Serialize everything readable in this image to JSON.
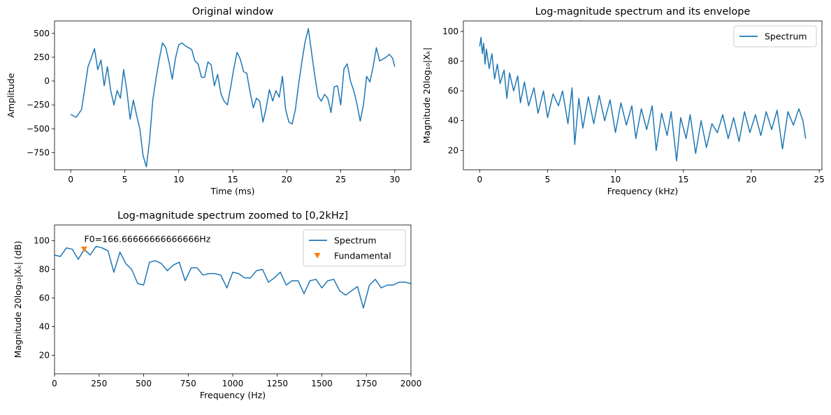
{
  "chart_data": [
    {
      "id": "window",
      "type": "line",
      "title": "Original window",
      "xlabel": "Time (ms)",
      "ylabel": "Amplitude",
      "xlim": [
        -1.5,
        31.5
      ],
      "ylim": [
        -930,
        630
      ],
      "xticks": [
        0,
        5,
        10,
        15,
        20,
        25,
        30
      ],
      "xtick_labels": [
        "0",
        "5",
        "10",
        "15",
        "20",
        "25",
        "30"
      ],
      "yticks": [
        -750,
        -500,
        -250,
        0,
        250,
        500
      ],
      "ytick_labels": [
        "−750",
        "−500",
        "−250",
        "0",
        "250",
        "500"
      ],
      "series": [
        {
          "name": "window",
          "color": "#1f77b4",
          "x": [
            0,
            0.5,
            1,
            1.3,
            1.6,
            1.9,
            2.2,
            2.5,
            2.8,
            3.1,
            3.4,
            3.7,
            4.0,
            4.3,
            4.6,
            4.9,
            5.2,
            5.5,
            5.8,
            6.1,
            6.4,
            6.7,
            7.0,
            7.3,
            7.6,
            7.9,
            8.2,
            8.5,
            8.8,
            9.1,
            9.4,
            9.7,
            10.0,
            10.3,
            10.6,
            10.9,
            11.2,
            11.5,
            11.8,
            12.1,
            12.4,
            12.7,
            13.0,
            13.3,
            13.6,
            13.9,
            14.2,
            14.5,
            14.8,
            15.1,
            15.4,
            15.7,
            16.0,
            16.3,
            16.6,
            16.9,
            17.2,
            17.5,
            17.8,
            18.1,
            18.4,
            18.7,
            19.0,
            19.3,
            19.6,
            19.9,
            20.2,
            20.5,
            20.8,
            21.1,
            21.4,
            21.7,
            22.0,
            22.3,
            22.6,
            22.9,
            23.2,
            23.5,
            23.8,
            24.1,
            24.4,
            24.7,
            25.0,
            25.3,
            25.6,
            25.9,
            26.2,
            26.5,
            26.8,
            27.1,
            27.4,
            27.7,
            28.0,
            28.3,
            28.6,
            28.9,
            29.2,
            29.5,
            29.8,
            30.0
          ],
          "y": [
            -350,
            -380,
            -300,
            -80,
            150,
            240,
            340,
            120,
            220,
            -50,
            150,
            -100,
            -250,
            -100,
            -180,
            120,
            -100,
            -400,
            -200,
            -360,
            -500,
            -780,
            -900,
            -620,
            -200,
            30,
            230,
            400,
            350,
            200,
            20,
            240,
            380,
            400,
            370,
            350,
            330,
            210,
            180,
            40,
            40,
            200,
            170,
            -50,
            70,
            -130,
            -210,
            -250,
            -70,
            130,
            300,
            230,
            100,
            80,
            -110,
            -280,
            -180,
            -210,
            -430,
            -280,
            -90,
            -210,
            -100,
            -170,
            50,
            -300,
            -430,
            -450,
            -300,
            -30,
            200,
            410,
            550,
            300,
            50,
            -160,
            -210,
            -140,
            -180,
            -330,
            -60,
            -50,
            -250,
            130,
            180,
            0,
            -100,
            -240,
            -420,
            -250,
            50,
            -10,
            150,
            350,
            210,
            230,
            250,
            280,
            240,
            150
          ]
        }
      ]
    },
    {
      "id": "spectrum",
      "type": "line",
      "title": "Log-magnitude spectrum and its envelope",
      "xlabel": "Frequency (kHz)",
      "ylabel": "Magnitude 20log₁₀|Xₖ|",
      "xlim": [
        -1.2,
        25.2
      ],
      "ylim": [
        7,
        107
      ],
      "xticks": [
        0,
        5,
        10,
        15,
        20,
        25
      ],
      "xtick_labels": [
        "0",
        "5",
        "10",
        "15",
        "20",
        "25"
      ],
      "yticks": [
        20,
        40,
        60,
        80,
        100
      ],
      "ytick_labels": [
        "20",
        "40",
        "60",
        "80",
        "100"
      ],
      "legend": {
        "position": "top-right",
        "entries": [
          "Spectrum"
        ]
      },
      "series": [
        {
          "name": "Spectrum",
          "color": "#1f77b4",
          "x": [
            0,
            0.1,
            0.2,
            0.3,
            0.4,
            0.5,
            0.7,
            0.9,
            1.1,
            1.3,
            1.5,
            1.8,
            2.0,
            2.2,
            2.5,
            2.8,
            3.0,
            3.3,
            3.6,
            4.0,
            4.3,
            4.7,
            5.0,
            5.4,
            5.8,
            6.1,
            6.5,
            6.8,
            7.0,
            7.3,
            7.6,
            8.0,
            8.4,
            8.8,
            9.2,
            9.6,
            10.0,
            10.4,
            10.8,
            11.2,
            11.5,
            11.9,
            12.3,
            12.7,
            13.0,
            13.4,
            13.8,
            14.1,
            14.5,
            14.8,
            15.2,
            15.5,
            15.9,
            16.3,
            16.7,
            17.1,
            17.5,
            17.9,
            18.3,
            18.7,
            19.1,
            19.5,
            19.9,
            20.3,
            20.7,
            21.1,
            21.5,
            21.9,
            22.3,
            22.7,
            23.1,
            23.5,
            23.8,
            24.0
          ],
          "y": [
            90,
            96,
            85,
            92,
            78,
            88,
            75,
            85,
            68,
            78,
            65,
            74,
            55,
            72,
            60,
            70,
            52,
            66,
            50,
            62,
            45,
            60,
            42,
            58,
            50,
            60,
            38,
            62,
            24,
            55,
            35,
            56,
            38,
            57,
            40,
            54,
            32,
            52,
            37,
            50,
            28,
            48,
            34,
            50,
            20,
            45,
            30,
            46,
            13,
            42,
            28,
            44,
            18,
            40,
            22,
            38,
            32,
            44,
            28,
            42,
            26,
            46,
            32,
            44,
            30,
            46,
            34,
            47,
            21,
            46,
            37,
            48,
            40,
            28
          ]
        }
      ]
    },
    {
      "id": "zoom",
      "type": "line",
      "title": "Log-magnitude spectrum zoomed to [0,2kHz]",
      "xlabel": "Frequency (Hz)",
      "ylabel": "Magnitude 20log₁₀|Xₖ| (dB)",
      "xlim": [
        0,
        2000
      ],
      "ylim": [
        7,
        111
      ],
      "xticks": [
        0,
        250,
        500,
        750,
        1000,
        1250,
        1500,
        1750,
        2000
      ],
      "xtick_labels": [
        "0",
        "250",
        "500",
        "750",
        "1000",
        "1250",
        "1500",
        "1750",
        "2000"
      ],
      "yticks": [
        20,
        40,
        60,
        80,
        100
      ],
      "ytick_labels": [
        "20",
        "40",
        "60",
        "80",
        "100"
      ],
      "legend": {
        "position": "top-right",
        "entries": [
          "Spectrum",
          "Fundamental"
        ]
      },
      "annotation": {
        "text": "F0=166.66666666666666Hz",
        "x": 166.67,
        "y": 98
      },
      "series": [
        {
          "name": "Spectrum",
          "color": "#1f77b4",
          "x": [
            0,
            33,
            67,
            100,
            133,
            167,
            200,
            233,
            267,
            300,
            333,
            367,
            400,
            433,
            467,
            500,
            533,
            567,
            600,
            633,
            667,
            700,
            733,
            767,
            800,
            833,
            867,
            900,
            933,
            967,
            1000,
            1033,
            1067,
            1100,
            1133,
            1167,
            1200,
            1233,
            1267,
            1300,
            1333,
            1367,
            1400,
            1433,
            1467,
            1500,
            1533,
            1567,
            1600,
            1633,
            1667,
            1700,
            1733,
            1767,
            1800,
            1833,
            1867,
            1900,
            1933,
            1967,
            2000
          ],
          "y": [
            90,
            89,
            95,
            94,
            87,
            94,
            90,
            96,
            95,
            93,
            78,
            92,
            84,
            80,
            70,
            69,
            85,
            86,
            84,
            79,
            83,
            85,
            72,
            81,
            81,
            76,
            77,
            77,
            76,
            67,
            78,
            77,
            74,
            74,
            79,
            80,
            71,
            74,
            78,
            69,
            72,
            72,
            63,
            72,
            73,
            67,
            72,
            73,
            65,
            62,
            65,
            68,
            53,
            69,
            73,
            67,
            69,
            69,
            71,
            71,
            70
          ]
        },
        {
          "name": "Fundamental",
          "color": "#ff7f0e",
          "marker": "triangle-down",
          "x": [
            166.67
          ],
          "y": [
            94
          ]
        }
      ]
    }
  ]
}
